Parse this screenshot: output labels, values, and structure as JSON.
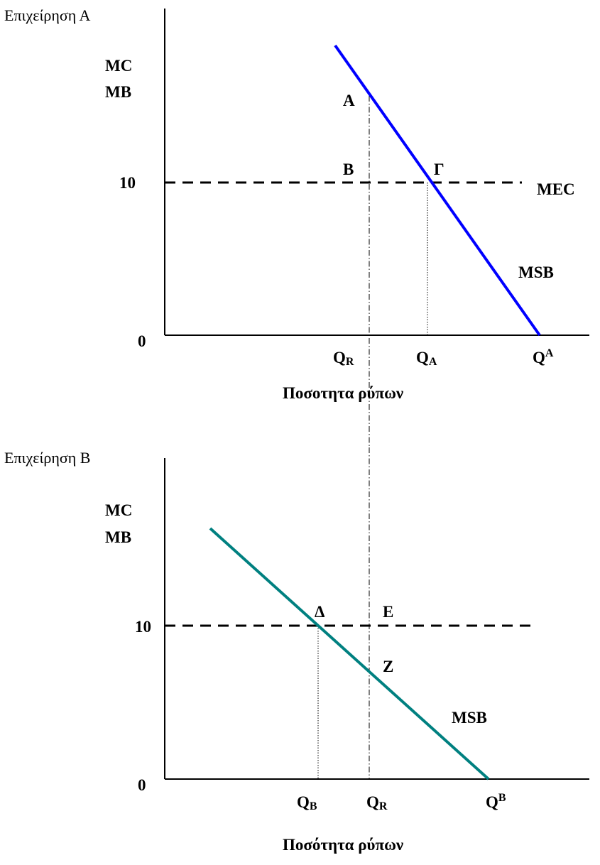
{
  "chart_data": [
    {
      "type": "line",
      "panel_title": "Επιχείρηση Α",
      "ylabel_lines": [
        "MC",
        "MB"
      ],
      "xlabel": "Ποσοτητα ρύπων",
      "y_ticks": [
        "10",
        "0"
      ],
      "x_ticks": [
        {
          "base": "Q",
          "sub": "R",
          "sup": ""
        },
        {
          "base": "Q",
          "sub": "A",
          "sup": ""
        },
        {
          "base": "Q",
          "sub": "",
          "sup": "A"
        }
      ],
      "series": [
        {
          "name": "MSB",
          "color": "#0000ff",
          "style": "solid",
          "points": [
            [
              0.72,
              18.9
            ],
            [
              1.32,
              0
            ]
          ]
        },
        {
          "name": "MEC",
          "color": "#000000",
          "style": "dashed",
          "points": [
            [
              0,
              10
            ],
            [
              1.2,
              10
            ]
          ]
        }
      ],
      "guide_lines": [
        {
          "kind": "dash-dot",
          "x": 0.72,
          "from_y": 0,
          "to_y": 15.3,
          "continues_to_next_panel": true
        },
        {
          "kind": "dotted",
          "x": 0.92,
          "from_y": 0,
          "to_y": 10
        }
      ],
      "point_labels": [
        "A",
        "B",
        "Γ"
      ],
      "axis_ranges": {
        "x": [
          0,
          1.5
        ],
        "y": [
          0,
          20
        ]
      },
      "grid": false
    },
    {
      "type": "line",
      "panel_title": "Επιχείρηση Β",
      "ylabel_lines": [
        "MC",
        "MB"
      ],
      "xlabel": "Ποσότητα ρύπων",
      "y_ticks": [
        "10",
        "0"
      ],
      "x_ticks": [
        {
          "base": "Q",
          "sub": "B",
          "sup": ""
        },
        {
          "base": "Q",
          "sub": "R",
          "sup": ""
        },
        {
          "base": "Q",
          "sub": "",
          "sup": "B"
        }
      ],
      "series": [
        {
          "name": "MSB",
          "color": "#008080",
          "style": "solid",
          "points": [
            [
              0.16,
              15.8
            ],
            [
              1.14,
              0
            ]
          ]
        },
        {
          "name": "",
          "color": "#000000",
          "style": "dashed",
          "points": [
            [
              0,
              10
            ],
            [
              1.28,
              10
            ]
          ]
        }
      ],
      "guide_lines": [
        {
          "kind": "dash-dot",
          "x": 0.72,
          "from_y": 0,
          "to_y": 10
        },
        {
          "kind": "dotted",
          "x": 0.54,
          "from_y": 0,
          "to_y": 10
        }
      ],
      "point_labels": [
        "Δ",
        "Ε",
        "Ζ"
      ],
      "axis_ranges": {
        "x": [
          0,
          1.5
        ],
        "y": [
          0,
          20
        ]
      },
      "grid": false
    }
  ]
}
